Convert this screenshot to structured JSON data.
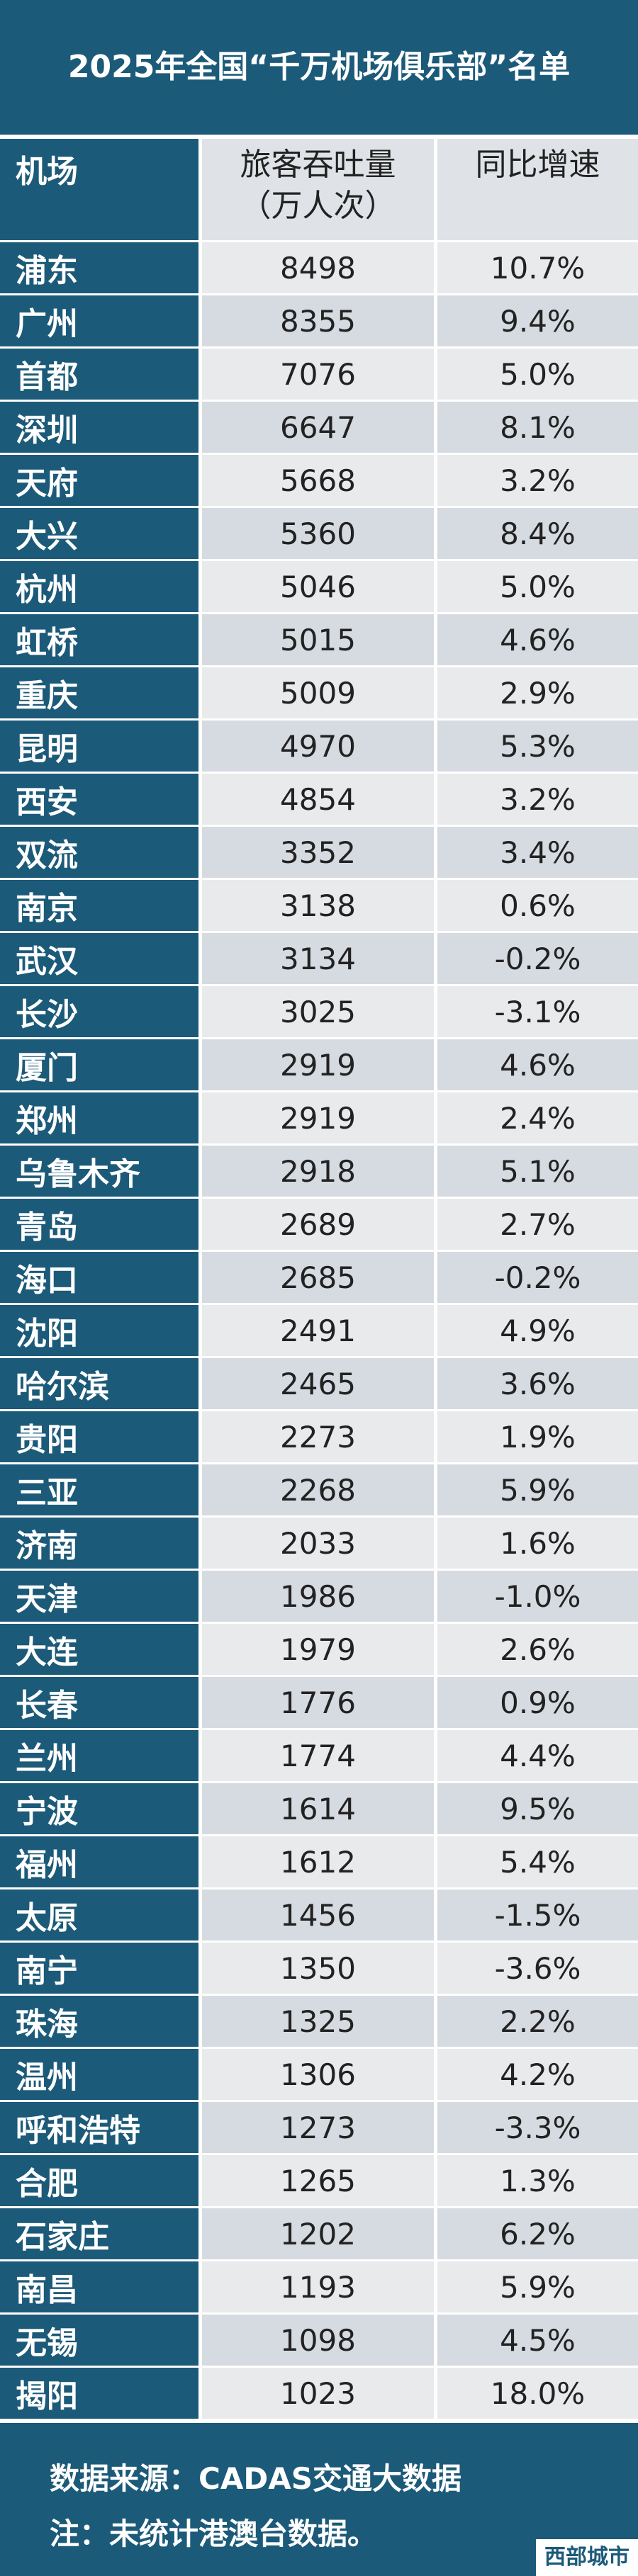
{
  "title": "2025年全国“千万机场俱乐部”名单",
  "table": {
    "header": [
      "机场",
      "旅客吞吐量（万人次）",
      "同比增速"
    ],
    "rows": [
      [
        "浦东",
        "8498",
        "10.7%"
      ],
      [
        "广州",
        "8355",
        "9.4%"
      ],
      [
        "首都",
        "7076",
        "5.0%"
      ],
      [
        "深圳",
        "6647",
        "8.1%"
      ],
      [
        "天府",
        "5668",
        "3.2%"
      ],
      [
        "大兴",
        "5360",
        "8.4%"
      ],
      [
        "杭州",
        "5046",
        "5.0%"
      ],
      [
        "虹桥",
        "5015",
        "4.6%"
      ],
      [
        "重庆",
        "5009",
        "2.9%"
      ],
      [
        "昆明",
        "4970",
        "5.3%"
      ],
      [
        "西安",
        "4854",
        "3.2%"
      ],
      [
        "双流",
        "3352",
        "3.4%"
      ],
      [
        "南京",
        "3138",
        "0.6%"
      ],
      [
        "武汉",
        "3134",
        "-0.2%"
      ],
      [
        "长沙",
        "3025",
        "-3.1%"
      ],
      [
        "厦门",
        "2919",
        "4.6%"
      ],
      [
        "郑州",
        "2919",
        "2.4%"
      ],
      [
        "乌鲁木齐",
        "2918",
        "5.1%"
      ],
      [
        "青岛",
        "2689",
        "2.7%"
      ],
      [
        "海口",
        "2685",
        "-0.2%"
      ],
      [
        "沈阳",
        "2491",
        "4.9%"
      ],
      [
        "哈尔滨",
        "2465",
        "3.6%"
      ],
      [
        "贵阳",
        "2273",
        "1.9%"
      ],
      [
        "三亚",
        "2268",
        "5.9%"
      ],
      [
        "济南",
        "2033",
        "1.6%"
      ],
      [
        "天津",
        "1986",
        "-1.0%"
      ],
      [
        "大连",
        "1979",
        "2.6%"
      ],
      [
        "长春",
        "1776",
        "0.9%"
      ],
      [
        "兰州",
        "1774",
        "4.4%"
      ],
      [
        "宁波",
        "1614",
        "9.5%"
      ],
      [
        "福州",
        "1612",
        "5.4%"
      ],
      [
        "太原",
        "1456",
        "-1.5%"
      ],
      [
        "南宁",
        "1350",
        "-3.6%"
      ],
      [
        "珠海",
        "1325",
        "2.2%"
      ],
      [
        "温州",
        "1306",
        "4.2%"
      ],
      [
        "呼和浩特",
        "1273",
        "-3.3%"
      ],
      [
        "合肥",
        "1265",
        "1.3%"
      ],
      [
        "石家庄",
        "1202",
        "6.2%"
      ],
      [
        "南昌",
        "1193",
        "5.9%"
      ],
      [
        "无锡",
        "1098",
        "4.5%"
      ],
      [
        "揭阳",
        "1023",
        "18.0%"
      ]
    ]
  },
  "footer": {
    "source": "数据来源：CADAS交通大数据",
    "note": "注：未统计港澳台数据。",
    "watermark": "西部城市"
  }
}
